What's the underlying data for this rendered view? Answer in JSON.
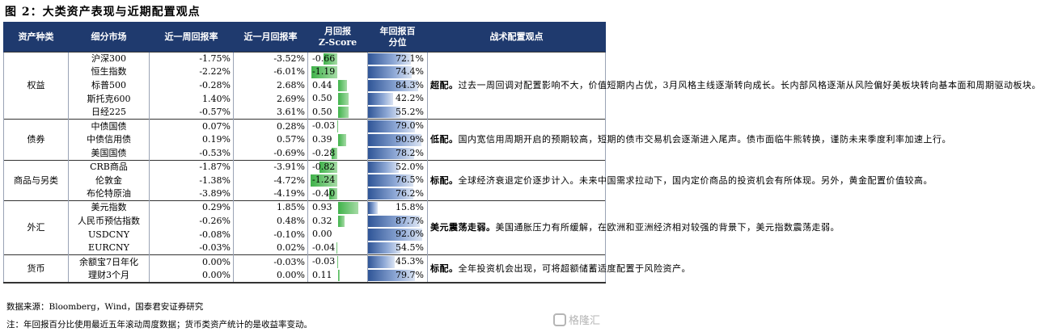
{
  "title": "图 2：大类资产表现与近期配置观点",
  "headers": [
    "资产种类",
    "细分市场",
    "近一周回报率",
    "近一月回报率",
    "月回报\nZ-Score",
    "年回报百\n分位",
    "战术配置观点"
  ],
  "groups": [
    {
      "category": "权益",
      "rows": [
        {
          "market": "沪深300",
          "week": "-1.75%",
          "month": "-3.52%",
          "z": "-0.66",
          "z_value": -0.66,
          "pct": "72.1%",
          "pct_value": 72.1
        },
        {
          "market": "恒生指数",
          "week": "-2.22%",
          "month": "-6.01%",
          "z": "-1.19",
          "z_value": -1.19,
          "pct": "74.4%",
          "pct_value": 74.4
        },
        {
          "market": "标普500",
          "week": "-0.28%",
          "month": "2.68%",
          "z": "0.44",
          "z_value": 0.44,
          "pct": "84.3%",
          "pct_value": 84.3
        },
        {
          "market": "斯托克600",
          "week": "1.40%",
          "month": "2.69%",
          "z": "0.50",
          "z_value": 0.5,
          "pct": "42.2%",
          "pct_value": 42.2
        },
        {
          "market": "日经225",
          "week": "-0.57%",
          "month": "3.61%",
          "z": "0.50",
          "z_value": 0.5,
          "pct": "55.2%",
          "pct_value": 55.2
        }
      ],
      "view_tag": "超配。",
      "view": "过去一周回调对配置影响不大，价值短期内占优，3月风格主线逐渐转向成长。长内部风格逐渐从风险偏好美板块转向基本面和周期驱动板块。"
    },
    {
      "category": "债券",
      "rows": [
        {
          "market": "中债国债",
          "week": "0.07%",
          "month": "0.28%",
          "z": "-0.03",
          "z_value": -0.03,
          "pct": "79.0%",
          "pct_value": 79.0
        },
        {
          "market": "中债信用债",
          "week": "0.19%",
          "month": "0.57%",
          "z": "0.39",
          "z_value": 0.39,
          "pct": "90.9%",
          "pct_value": 90.9
        },
        {
          "market": "美国国债",
          "week": "-0.53%",
          "month": "-0.69%",
          "z": "-0.28",
          "z_value": -0.28,
          "pct": "78.2%",
          "pct_value": 78.2
        }
      ],
      "view_tag": "低配。",
      "view": "国内宽信用周期开启的预期较高，短期的债市交易机会逐渐进入尾声。债市面临牛熊转换，谨防未来季度利率加速上行。"
    },
    {
      "category": "商品与另类",
      "rows": [
        {
          "market": "CRB商品",
          "week": "-1.87%",
          "month": "-3.91%",
          "z": "-0.82",
          "z_value": -0.82,
          "pct": "52.0%",
          "pct_value": 52.0
        },
        {
          "market": "伦敦金",
          "week": "-1.38%",
          "month": "-4.72%",
          "z": "-1.24",
          "z_value": -1.24,
          "pct": "76.5%",
          "pct_value": 76.5
        },
        {
          "market": "布伦特原油",
          "week": "-3.89%",
          "month": "-4.19%",
          "z": "-0.40",
          "z_value": -0.4,
          "pct": "76.2%",
          "pct_value": 76.2
        }
      ],
      "view_tag": "标配。",
      "view": "全球经济衰退定价逐步计入。未来中国需求拉动下，国内定价商品的投资机会有所体现。另外，黄金配置价值较高。"
    },
    {
      "category": "外汇",
      "rows": [
        {
          "market": "美元指数",
          "week": "0.29%",
          "month": "1.85%",
          "z": "0.93",
          "z_value": 0.93,
          "pct": "15.8%",
          "pct_value": 15.8
        },
        {
          "market": "人民币预估指数",
          "week": "-0.26%",
          "month": "0.48%",
          "z": "0.32",
          "z_value": 0.32,
          "pct": "87.7%",
          "pct_value": 87.7
        },
        {
          "market": "USDCNY",
          "week": "-0.08%",
          "month": "-0.10%",
          "z": "0.00",
          "z_value": 0.0,
          "pct": "92.0%",
          "pct_value": 92.0
        },
        {
          "market": "EURCNY",
          "week": "-0.03%",
          "month": "0.02%",
          "z": "-0.04",
          "z_value": -0.04,
          "pct": "54.5%",
          "pct_value": 54.5
        }
      ],
      "view_tag": "美元震荡走弱。",
      "view": "美国通胀压力有所缓解，在欧洲和亚洲经济相对较强的背景下，美元指数震荡走弱。"
    },
    {
      "category": "货币",
      "rows": [
        {
          "market": "余额宝7日年化",
          "week": "0.00%",
          "month": "-0.03%",
          "z": "-0.03",
          "z_value": -0.03,
          "pct": "45.3%",
          "pct_value": 45.3
        },
        {
          "market": "理财3个月",
          "week": "0.00%",
          "month": "0.00%",
          "z": "0.11",
          "z_value": 0.11,
          "pct": "79.7%",
          "pct_value": 79.7
        }
      ],
      "view_tag": "标配。",
      "view": "全年投资机会出现，可将超额储蓄适度配置于风险资产。"
    }
  ],
  "source": "数据来源：Bloomberg，Wind，国泰君安证券研究",
  "note": "注：年回报百分比使用最近五年滚动周度数据；货币类资产统计的是收益率变动。",
  "watermark": "格隆汇",
  "colors": {
    "header_bg": "#1f3a6e",
    "z_bar": "#3fb24a",
    "pct_bar": "#2f5597"
  }
}
